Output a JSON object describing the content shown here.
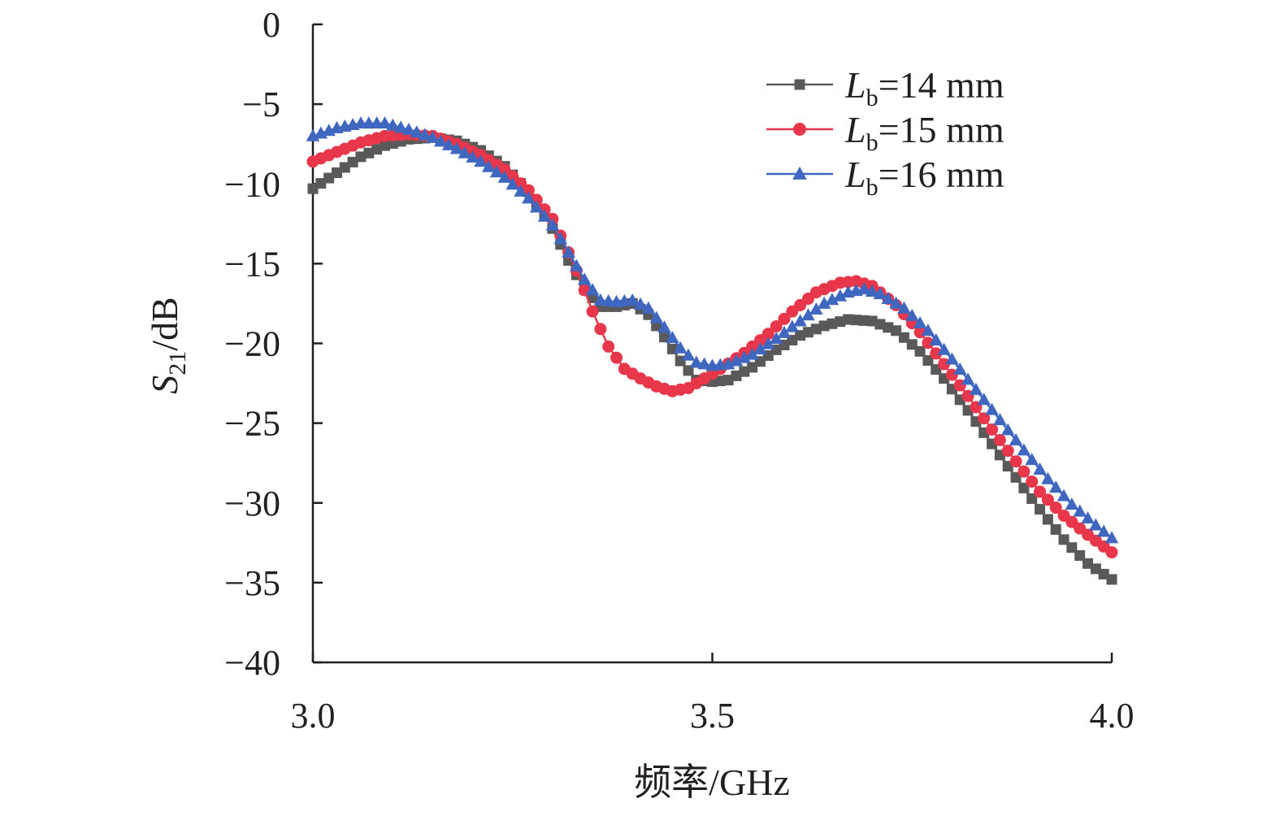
{
  "chart_data": {
    "type": "line",
    "title": "",
    "xlabel": "频率/GHz",
    "ylabel": {
      "main": "S",
      "sub": "21",
      "unit": "/dB"
    },
    "xlim": [
      3.0,
      4.0
    ],
    "ylim": [
      -40,
      0
    ],
    "x_ticks": [
      {
        "value": 3.0,
        "label": "3.0"
      },
      {
        "value": 3.5,
        "label": "3.5"
      },
      {
        "value": 4.0,
        "label": "4.0"
      }
    ],
    "y_ticks": [
      {
        "value": 0,
        "label": "0"
      },
      {
        "value": -5,
        "label": "−5"
      },
      {
        "value": -10,
        "label": "−10"
      },
      {
        "value": -15,
        "label": "−15"
      },
      {
        "value": -20,
        "label": "−20"
      },
      {
        "value": -25,
        "label": "−25"
      },
      {
        "value": -30,
        "label": "−30"
      },
      {
        "value": -35,
        "label": "−35"
      },
      {
        "value": -40,
        "label": "−40"
      }
    ],
    "legend_position": "top-right",
    "series": [
      {
        "name": "Lb=14 mm",
        "legend": {
          "main": "L",
          "sub": "b",
          "rest": "=14 mm"
        },
        "color": "#595959",
        "marker": "square",
        "points": [
          [
            3.0,
            -10.3
          ],
          [
            3.03,
            -9.3
          ],
          [
            3.06,
            -8.3
          ],
          [
            3.09,
            -7.6
          ],
          [
            3.12,
            -7.2
          ],
          [
            3.15,
            -7.1
          ],
          [
            3.18,
            -7.3
          ],
          [
            3.21,
            -7.9
          ],
          [
            3.24,
            -8.9
          ],
          [
            3.27,
            -10.5
          ],
          [
            3.3,
            -12.8
          ],
          [
            3.32,
            -14.8
          ],
          [
            3.34,
            -16.6
          ],
          [
            3.36,
            -17.7
          ],
          [
            3.38,
            -17.7
          ],
          [
            3.4,
            -17.5
          ],
          [
            3.42,
            -18.2
          ],
          [
            3.44,
            -19.6
          ],
          [
            3.46,
            -21.1
          ],
          [
            3.48,
            -22.3
          ],
          [
            3.5,
            -22.4
          ],
          [
            3.52,
            -22.3
          ],
          [
            3.55,
            -21.5
          ],
          [
            3.58,
            -20.4
          ],
          [
            3.61,
            -19.5
          ],
          [
            3.64,
            -18.9
          ],
          [
            3.67,
            -18.5
          ],
          [
            3.7,
            -18.6
          ],
          [
            3.73,
            -19.2
          ],
          [
            3.76,
            -20.5
          ],
          [
            3.79,
            -22.2
          ],
          [
            3.82,
            -24.2
          ],
          [
            3.85,
            -26.3
          ],
          [
            3.88,
            -28.4
          ],
          [
            3.91,
            -30.4
          ],
          [
            3.94,
            -32.3
          ],
          [
            3.97,
            -33.8
          ],
          [
            4.0,
            -34.8
          ]
        ]
      },
      {
        "name": "Lb=15 mm",
        "legend": {
          "main": "L",
          "sub": "b",
          "rest": "=15 mm"
        },
        "color": "#e8364a",
        "marker": "circle",
        "points": [
          [
            3.0,
            -8.6
          ],
          [
            3.03,
            -8.0
          ],
          [
            3.06,
            -7.4
          ],
          [
            3.09,
            -7.0
          ],
          [
            3.12,
            -6.9
          ],
          [
            3.15,
            -7.0
          ],
          [
            3.18,
            -7.5
          ],
          [
            3.21,
            -8.2
          ],
          [
            3.24,
            -9.1
          ],
          [
            3.27,
            -10.4
          ],
          [
            3.3,
            -12.2
          ],
          [
            3.32,
            -14.3
          ],
          [
            3.335,
            -16.0
          ],
          [
            3.35,
            -18.0
          ],
          [
            3.37,
            -20.2
          ],
          [
            3.39,
            -21.6
          ],
          [
            3.41,
            -22.2
          ],
          [
            3.43,
            -22.7
          ],
          [
            3.45,
            -23.0
          ],
          [
            3.47,
            -22.8
          ],
          [
            3.49,
            -22.2
          ],
          [
            3.51,
            -21.6
          ],
          [
            3.54,
            -20.6
          ],
          [
            3.57,
            -19.4
          ],
          [
            3.6,
            -18.0
          ],
          [
            3.63,
            -16.8
          ],
          [
            3.66,
            -16.2
          ],
          [
            3.68,
            -16.1
          ],
          [
            3.7,
            -16.4
          ],
          [
            3.73,
            -17.6
          ],
          [
            3.76,
            -19.3
          ],
          [
            3.79,
            -21.3
          ],
          [
            3.82,
            -23.3
          ],
          [
            3.85,
            -25.4
          ],
          [
            3.88,
            -27.4
          ],
          [
            3.91,
            -29.3
          ],
          [
            3.94,
            -30.8
          ],
          [
            3.97,
            -32.0
          ],
          [
            4.0,
            -33.1
          ]
        ]
      },
      {
        "name": "Lb=16 mm",
        "legend": {
          "main": "L",
          "sub": "b",
          "rest": "=16 mm"
        },
        "color": "#3f67c0",
        "marker": "triangle",
        "points": [
          [
            3.0,
            -7.0
          ],
          [
            3.03,
            -6.5
          ],
          [
            3.06,
            -6.2
          ],
          [
            3.09,
            -6.2
          ],
          [
            3.12,
            -6.6
          ],
          [
            3.15,
            -7.1
          ],
          [
            3.18,
            -7.8
          ],
          [
            3.21,
            -8.6
          ],
          [
            3.24,
            -9.6
          ],
          [
            3.27,
            -10.9
          ],
          [
            3.3,
            -12.6
          ],
          [
            3.32,
            -14.3
          ],
          [
            3.34,
            -16.0
          ],
          [
            3.36,
            -17.3
          ],
          [
            3.38,
            -17.4
          ],
          [
            3.4,
            -17.3
          ],
          [
            3.42,
            -17.8
          ],
          [
            3.44,
            -19.0
          ],
          [
            3.46,
            -20.3
          ],
          [
            3.48,
            -21.2
          ],
          [
            3.5,
            -21.4
          ],
          [
            3.52,
            -21.3
          ],
          [
            3.55,
            -20.7
          ],
          [
            3.58,
            -19.7
          ],
          [
            3.61,
            -18.6
          ],
          [
            3.64,
            -17.5
          ],
          [
            3.67,
            -16.8
          ],
          [
            3.69,
            -16.6
          ],
          [
            3.71,
            -16.9
          ],
          [
            3.74,
            -17.8
          ],
          [
            3.77,
            -19.2
          ],
          [
            3.8,
            -21.0
          ],
          [
            3.83,
            -22.9
          ],
          [
            3.86,
            -24.8
          ],
          [
            3.89,
            -26.7
          ],
          [
            3.92,
            -28.5
          ],
          [
            3.95,
            -30.1
          ],
          [
            3.98,
            -31.4
          ],
          [
            4.0,
            -32.2
          ]
        ]
      }
    ]
  }
}
